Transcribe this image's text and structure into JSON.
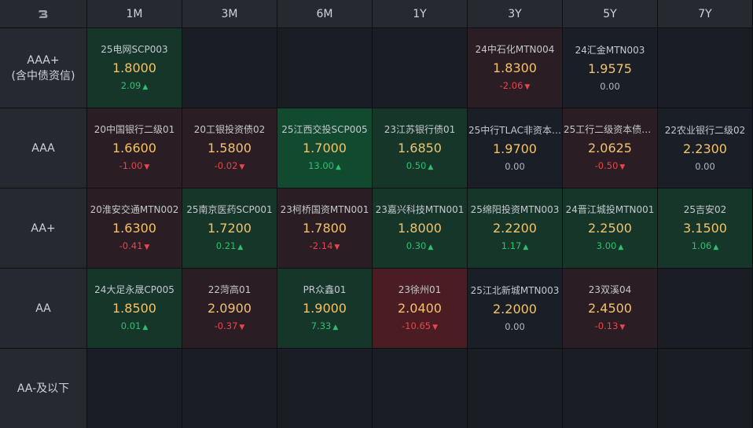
{
  "columns": [
    "1M",
    "3M",
    "6M",
    "1Y",
    "3Y",
    "5Y",
    "7Y"
  ],
  "colors": {
    "up": "#2fbf71",
    "down": "#e9454d",
    "yield": "#f3c26a"
  },
  "rows": [
    {
      "label": "AAA+\n(含中债资信)",
      "cells": [
        {
          "name": "25电网SCP003",
          "yield": "1.8000",
          "change": "2.09",
          "dir": "up",
          "bg": "dg",
          "arrow": "▲"
        },
        {
          "empty": true
        },
        {
          "empty": true
        },
        {
          "empty": true
        },
        {
          "name": "24中石化MTN004",
          "yield": "1.8300",
          "change": "-2.06",
          "dir": "down",
          "bg": "dr",
          "arrow": "▼"
        },
        {
          "name": "24汇金MTN003",
          "yield": "1.9575",
          "change": "0.00",
          "dir": "flat",
          "bg": "neutral",
          "arrow": ""
        },
        {
          "empty": true
        }
      ]
    },
    {
      "label": "AAA",
      "cells": [
        {
          "name": "20中国银行二级01",
          "yield": "1.6600",
          "change": "-1.00",
          "dir": "down",
          "bg": "dr",
          "arrow": "▼"
        },
        {
          "name": "20工银投资债02",
          "yield": "1.5800",
          "change": "-0.02",
          "dir": "down",
          "bg": "dr",
          "arrow": "▼"
        },
        {
          "name": "25江西交投SCP005",
          "yield": "1.7000",
          "change": "13.00",
          "dir": "up",
          "bg": "bg",
          "arrow": "▲"
        },
        {
          "name": "23江苏银行债01",
          "yield": "1.6850",
          "change": "0.50",
          "dir": "up",
          "bg": "dg",
          "arrow": "▲"
        },
        {
          "name": "25中行TLAC非资本…",
          "yield": "1.9700",
          "change": "0.00",
          "dir": "flat",
          "bg": "neutral",
          "arrow": ""
        },
        {
          "name": "25工行二级资本债0…",
          "yield": "2.0625",
          "change": "-0.50",
          "dir": "down",
          "bg": "dr",
          "arrow": "▼"
        },
        {
          "name": "22农业银行二级02",
          "yield": "2.2300",
          "change": "0.00",
          "dir": "flat",
          "bg": "neutral",
          "arrow": ""
        }
      ]
    },
    {
      "label": "AA+",
      "cells": [
        {
          "name": "20淮安交通MTN002",
          "yield": "1.6300",
          "change": "-0.41",
          "dir": "down",
          "bg": "dr",
          "arrow": "▼"
        },
        {
          "name": "25南京医药SCP001",
          "yield": "1.7200",
          "change": "0.21",
          "dir": "up",
          "bg": "dg",
          "arrow": "▲"
        },
        {
          "name": "23柯桥国资MTN001",
          "yield": "1.7800",
          "change": "-2.14",
          "dir": "down",
          "bg": "dr",
          "arrow": "▼"
        },
        {
          "name": "23嘉兴科技MTN001",
          "yield": "1.8000",
          "change": "0.30",
          "dir": "up",
          "bg": "dg",
          "arrow": "▲"
        },
        {
          "name": "25绵阳投资MTN003",
          "yield": "2.2200",
          "change": "1.17",
          "dir": "up",
          "bg": "dg",
          "arrow": "▲"
        },
        {
          "name": "24晋江城投MTN001",
          "yield": "2.2500",
          "change": "3.00",
          "dir": "up",
          "bg": "dg",
          "arrow": "▲"
        },
        {
          "name": "25吉安02",
          "yield": "3.1500",
          "change": "1.06",
          "dir": "up",
          "bg": "dg",
          "arrow": "▲"
        }
      ]
    },
    {
      "label": "AA",
      "cells": [
        {
          "name": "24大足永晟CP005",
          "yield": "1.8500",
          "change": "0.01",
          "dir": "up",
          "bg": "dg",
          "arrow": "▲"
        },
        {
          "name": "22菏高01",
          "yield": "2.0900",
          "change": "-0.37",
          "dir": "down",
          "bg": "dr",
          "arrow": "▼"
        },
        {
          "name": "PR众鑫01",
          "yield": "1.9000",
          "change": "7.33",
          "dir": "up",
          "bg": "dg",
          "arrow": "▲"
        },
        {
          "name": "23徐州01",
          "yield": "2.0400",
          "change": "-10.65",
          "dir": "down",
          "bg": "br",
          "arrow": "▼"
        },
        {
          "name": "25江北新城MTN003",
          "yield": "2.2000",
          "change": "0.00",
          "dir": "flat",
          "bg": "neutral",
          "arrow": ""
        },
        {
          "name": "23双溪04",
          "yield": "2.4500",
          "change": "-0.13",
          "dir": "down",
          "bg": "dr",
          "arrow": "▼"
        },
        {
          "empty": true
        }
      ]
    },
    {
      "label": "AA-及以下",
      "cells": [
        {
          "empty": true
        },
        {
          "empty": true
        },
        {
          "empty": true
        },
        {
          "empty": true
        },
        {
          "empty": true
        },
        {
          "empty": true
        },
        {
          "empty": true
        }
      ]
    }
  ]
}
